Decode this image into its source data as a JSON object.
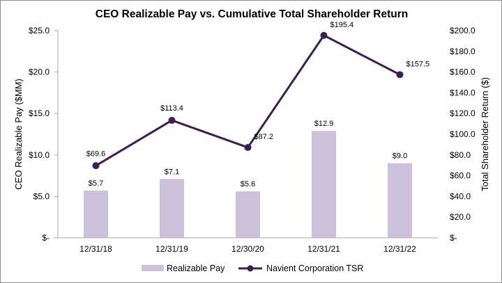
{
  "chart_data": {
    "type": "bar+line",
    "title": "CEO Realizable Pay vs. Cumulative  Total  Shareholder Return",
    "categories": [
      "12/31/18",
      "12/31/19",
      "12/30/20",
      "12/31/21",
      "12/31/22"
    ],
    "series": [
      {
        "name": "Realizable Pay",
        "type": "bar",
        "axis": "left",
        "values": [
          5.7,
          7.1,
          5.6,
          12.9,
          9.0
        ],
        "labels": [
          "$5.7",
          "$7.1",
          "$5.6",
          "$12.9",
          "$9.0"
        ],
        "color": "#ccc0da"
      },
      {
        "name": "Navient Corporation TSR",
        "type": "line",
        "axis": "right",
        "values": [
          69.6,
          113.4,
          87.2,
          195.4,
          157.5
        ],
        "labels": [
          "$69.6",
          "$113.4",
          "$87.2",
          "$195.4",
          "$157.5"
        ],
        "color": "#3b1f4e"
      }
    ],
    "y_left": {
      "label": "CEO Realizable Pay ($MM)",
      "min": 0,
      "max": 25,
      "ticks": [
        0,
        5,
        10,
        15,
        20,
        25
      ],
      "tick_labels": [
        "$-",
        "$5.0",
        "$10.0",
        "$15.0",
        "$20.0",
        "$25.0"
      ]
    },
    "y_right": {
      "label": "Total Shareholder Return ($)",
      "min": 0,
      "max": 200,
      "ticks": [
        0,
        20,
        40,
        60,
        80,
        100,
        120,
        140,
        160,
        180,
        200
      ],
      "tick_labels": [
        "$-",
        "$20.0",
        "$40.0",
        "$60.0",
        "$80.0",
        "$100.0",
        "$120.0",
        "$140.0",
        "$160.0",
        "$180.0",
        "$200.0"
      ]
    },
    "legend": {
      "position": "bottom",
      "bar_label": "Realizable Pay",
      "line_label": "Navient Corporation TSR"
    },
    "grid": false
  }
}
